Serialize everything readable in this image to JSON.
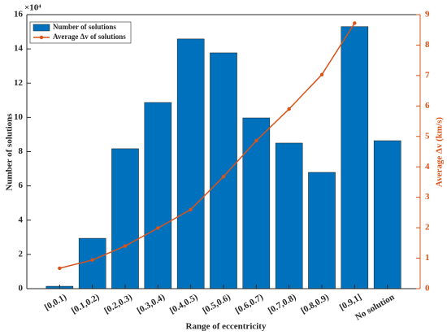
{
  "chart_data": {
    "type": "bar",
    "categories": [
      "[0,0.1)",
      "[0.1,0.2)",
      "[0.2,0.3)",
      "[0.3,0.4)",
      "[0.4,0.5)",
      "[0.5,0.6)",
      "[0.6,0.7)",
      "[0.7,0.8)",
      "[0.8,0.9)",
      "[0.9,1]",
      "No solution"
    ],
    "series": [
      {
        "name": "Number of solutions",
        "color": "#0072bd",
        "type": "bar",
        "values": [
          0.14,
          2.94,
          8.17,
          10.87,
          14.58,
          13.77,
          9.97,
          8.5,
          6.79,
          15.3,
          8.64
        ]
      },
      {
        "name": "Average Δv of solutions",
        "color": "#d95319",
        "type": "line",
        "axis": "y2",
        "values": [
          0.67,
          0.94,
          1.4,
          1.99,
          2.6,
          3.68,
          4.86,
          5.9,
          7.03,
          8.72,
          null
        ]
      }
    ],
    "x_label": "Range of eccentricity",
    "y_label": "Number of solutions",
    "y2_label": "Average Δv (km/s)",
    "y_multiplier": "×10⁴",
    "ylim": [
      0,
      16
    ],
    "yticks": [
      0,
      2,
      4,
      6,
      8,
      10,
      12,
      14,
      16
    ],
    "y2lim": [
      0,
      9
    ],
    "y2ticks": [
      0,
      1,
      2,
      3,
      4,
      5,
      6,
      7,
      8,
      9
    ],
    "legend": "upper left",
    "grid": false
  }
}
